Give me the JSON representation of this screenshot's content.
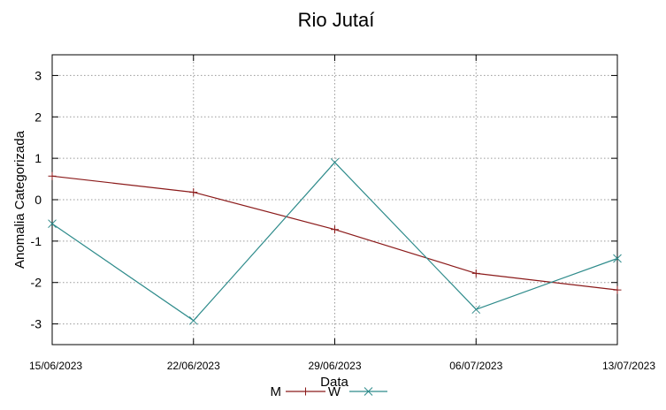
{
  "chart_data": {
    "type": "line",
    "title": "Rio Jutaí",
    "xlabel": "Data",
    "ylabel": "Anomalia Categorizada",
    "categories": [
      "15/06/2023",
      "22/06/2023",
      "29/06/2023",
      "06/07/2023",
      "13/07/2023"
    ],
    "ylim": [
      -3.5,
      3.5
    ],
    "yticks": [
      -3,
      -2,
      -1,
      0,
      1,
      2,
      3
    ],
    "grid": true,
    "legend_position": "bottom-center",
    "series": [
      {
        "name": "M",
        "color": "#8b1a1a",
        "marker": "plus",
        "values": [
          0.57,
          0.18,
          -0.72,
          -1.78,
          -2.18
        ]
      },
      {
        "name": "W",
        "color": "#2e8b8b",
        "marker": "cross",
        "values": [
          -0.58,
          -2.92,
          0.9,
          -2.65,
          -1.42
        ]
      }
    ]
  }
}
